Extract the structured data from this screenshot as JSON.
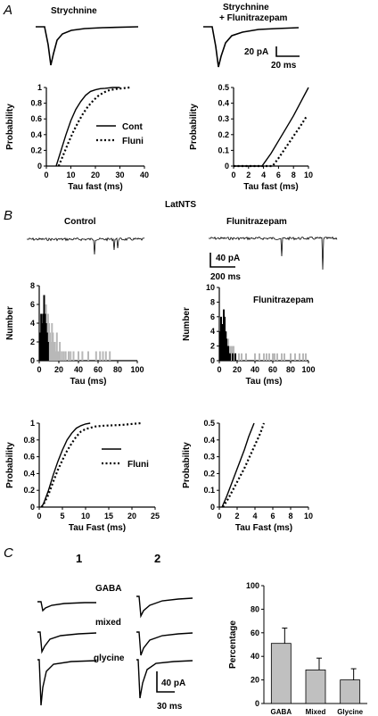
{
  "panels": [
    "A",
    "B",
    "C"
  ],
  "section_a": {
    "left_title": "Strychnine",
    "right_title_line1": "Strychnine",
    "right_title_line2": "+ Flunitrazepam",
    "scale_pa": "20 pA",
    "scale_ms": "20 ms"
  },
  "section_b": {
    "title": "LatNTS",
    "left_title": "Control",
    "right_title": "Flunitrazepam",
    "scale_pa": "40 pA",
    "scale_ms": "200 ms",
    "hist_annotation": "Flunitrazepam"
  },
  "section_c": {
    "col1": "1",
    "col2": "2",
    "row_labels": [
      "GABA",
      "mixed",
      "glycine"
    ],
    "scale_pa": "40 pA",
    "scale_ms": "30 ms"
  },
  "chart_data": [
    {
      "id": "a_left_cdf",
      "type": "line",
      "xlabel": "Tau fast (ms)",
      "ylabel": "Probability",
      "xlim": [
        0,
        40
      ],
      "ylim": [
        0,
        1.0
      ],
      "xticks": [
        0,
        10,
        20,
        30,
        40
      ],
      "yticks": [
        0,
        0.2,
        0.4,
        0.6,
        0.8,
        1.0
      ],
      "legend": "right-center",
      "series": [
        {
          "name": "Cont",
          "style": "solid",
          "x": [
            4,
            6,
            8,
            10,
            12,
            14,
            16,
            18,
            20,
            22,
            24,
            27,
            30
          ],
          "y": [
            0,
            0.2,
            0.4,
            0.58,
            0.72,
            0.82,
            0.9,
            0.95,
            0.97,
            0.985,
            0.99,
            1.0,
            1.0
          ]
        },
        {
          "name": "Fluni",
          "style": "dotted",
          "x": [
            5,
            7,
            9,
            11,
            13,
            15,
            17,
            19,
            21,
            23,
            25,
            28,
            31,
            34
          ],
          "y": [
            0,
            0.15,
            0.3,
            0.44,
            0.56,
            0.67,
            0.76,
            0.83,
            0.89,
            0.93,
            0.96,
            0.98,
            0.99,
            1.0
          ]
        }
      ]
    },
    {
      "id": "a_right_cdf",
      "type": "line",
      "xlabel": "Tau fast (ms)",
      "ylabel": "Probability",
      "xlim": [
        0,
        10
      ],
      "ylim": [
        0,
        0.5
      ],
      "xticks": [
        0,
        2,
        4,
        6,
        8,
        10
      ],
      "yticks": [
        0,
        0.1,
        0.2,
        0.3,
        0.4,
        0.5
      ],
      "series": [
        {
          "name": "Cont",
          "style": "solid",
          "x": [
            0,
            3.8,
            5,
            6,
            7,
            8,
            9,
            10
          ],
          "y": [
            0,
            0,
            0.08,
            0.16,
            0.24,
            0.32,
            0.41,
            0.5
          ]
        },
        {
          "name": "Fluni",
          "style": "dotted",
          "x": [
            0,
            5.2,
            6,
            7,
            8,
            9,
            9.8
          ],
          "y": [
            0,
            0,
            0.05,
            0.12,
            0.19,
            0.26,
            0.32
          ]
        }
      ]
    },
    {
      "id": "b_left_hist",
      "type": "bar",
      "xlabel": "Tau (ms)",
      "ylabel": "Number",
      "xlim": [
        0,
        100
      ],
      "ylim": [
        0,
        8
      ],
      "xticks": [
        0,
        20,
        40,
        60,
        80,
        100
      ],
      "yticks": [
        0,
        2,
        4,
        6,
        8
      ],
      "series": [
        {
          "name": "Control",
          "color": "#000000",
          "x": [
            1,
            2,
            3,
            4,
            5,
            6,
            7,
            8,
            9
          ],
          "values": [
            3,
            5,
            4,
            5,
            7,
            5,
            4,
            3,
            2
          ]
        },
        {
          "name": "Fluni",
          "color": "#b8b8b8",
          "x": [
            3,
            5,
            7,
            9,
            10,
            11,
            12,
            13,
            14,
            15,
            16,
            17,
            18,
            19,
            20,
            21,
            23,
            25,
            27,
            30,
            32,
            35,
            40,
            44,
            50,
            58,
            62,
            65,
            68,
            72
          ],
          "values": [
            2,
            3,
            6,
            5,
            4,
            3,
            2,
            4,
            3,
            2,
            2,
            1,
            3,
            1,
            1,
            2,
            1,
            1,
            1,
            1,
            1,
            1,
            1,
            1,
            1,
            1,
            1,
            1,
            1,
            1
          ]
        }
      ]
    },
    {
      "id": "b_right_hist",
      "type": "bar",
      "xlabel": "Tau (ms)",
      "ylabel": "Number",
      "xlim": [
        0,
        100
      ],
      "ylim": [
        0,
        10
      ],
      "xticks": [
        0,
        20,
        40,
        60,
        80,
        100
      ],
      "yticks": [
        0,
        2,
        4,
        6,
        8,
        10
      ],
      "series": [
        {
          "name": "Control",
          "color": "#000000",
          "x": [
            1,
            2,
            3,
            4,
            5,
            6,
            7,
            8,
            9,
            10,
            11,
            12,
            15,
            18
          ],
          "values": [
            4,
            6,
            5,
            3,
            7,
            6,
            4,
            3,
            2,
            2,
            1,
            1,
            1,
            1
          ]
        },
        {
          "name": "Fluni",
          "color": "#b8b8b8",
          "x": [
            3,
            6,
            8,
            10,
            12,
            14,
            16,
            18,
            22,
            25,
            30,
            40,
            45,
            50,
            53,
            56,
            60,
            62,
            65,
            70,
            73,
            80,
            85,
            90,
            94,
            97
          ],
          "values": [
            3,
            5,
            4,
            3,
            2,
            2,
            2,
            1,
            1,
            1,
            1,
            1,
            1,
            1,
            1,
            1,
            1,
            1,
            1,
            1,
            1,
            1,
            1,
            1,
            1,
            1
          ]
        }
      ]
    },
    {
      "id": "b_left_cdf",
      "type": "line",
      "xlabel": "Tau Fast (ms)",
      "ylabel": "Probability",
      "xlim": [
        0,
        25
      ],
      "ylim": [
        0,
        1.0
      ],
      "xticks": [
        0,
        5,
        10,
        15,
        20,
        25
      ],
      "yticks": [
        0,
        0.2,
        0.4,
        0.6,
        0.8,
        1.0
      ],
      "legend": "right-center",
      "series": [
        {
          "name": "",
          "style": "solid",
          "x": [
            0.5,
            1,
            2,
            3,
            4,
            5,
            6,
            7,
            8,
            9,
            10,
            11
          ],
          "y": [
            0,
            0.05,
            0.2,
            0.38,
            0.54,
            0.68,
            0.8,
            0.88,
            0.94,
            0.97,
            0.99,
            1.0
          ]
        },
        {
          "name": "Fluni",
          "style": "dotted",
          "x": [
            0.5,
            1,
            2,
            3,
            4,
            5,
            6,
            7,
            8,
            9,
            10,
            12,
            14,
            16,
            18,
            20,
            22
          ],
          "y": [
            0,
            0.04,
            0.15,
            0.3,
            0.44,
            0.56,
            0.67,
            0.76,
            0.84,
            0.9,
            0.93,
            0.96,
            0.97,
            0.975,
            0.98,
            0.99,
            1.0
          ]
        }
      ]
    },
    {
      "id": "b_right_cdf",
      "type": "line",
      "xlabel": "Tau Fast  (ms)",
      "ylabel": "Probability",
      "xlim": [
        0,
        10
      ],
      "ylim": [
        0,
        0.5
      ],
      "xticks": [
        0,
        2,
        4,
        6,
        8,
        10
      ],
      "yticks": [
        0,
        0.1,
        0.2,
        0.3,
        0.4,
        0.5
      ],
      "series": [
        {
          "name": "Cont",
          "style": "solid",
          "x": [
            0.3,
            0.8,
            1.3,
            1.8,
            2.3,
            2.8,
            3.3,
            3.9
          ],
          "y": [
            0,
            0.06,
            0.13,
            0.2,
            0.27,
            0.34,
            0.42,
            0.5
          ]
        },
        {
          "name": "Fluni",
          "style": "dotted",
          "x": [
            0.4,
            1,
            1.6,
            2.2,
            2.8,
            3.4,
            4,
            4.6,
            5
          ],
          "y": [
            0,
            0.05,
            0.11,
            0.17,
            0.23,
            0.3,
            0.37,
            0.44,
            0.5
          ]
        }
      ]
    },
    {
      "id": "c_bar",
      "type": "bar",
      "ylabel": "Percentage",
      "categories": [
        "GABA",
        "Mixed",
        "Glycine"
      ],
      "values": [
        51,
        28.5,
        20
      ],
      "errors": [
        13,
        10,
        9.5
      ],
      "ylim": [
        0,
        100
      ],
      "yticks": [
        0,
        20,
        40,
        60,
        80,
        100
      ],
      "color": "#c0c0c0"
    }
  ]
}
